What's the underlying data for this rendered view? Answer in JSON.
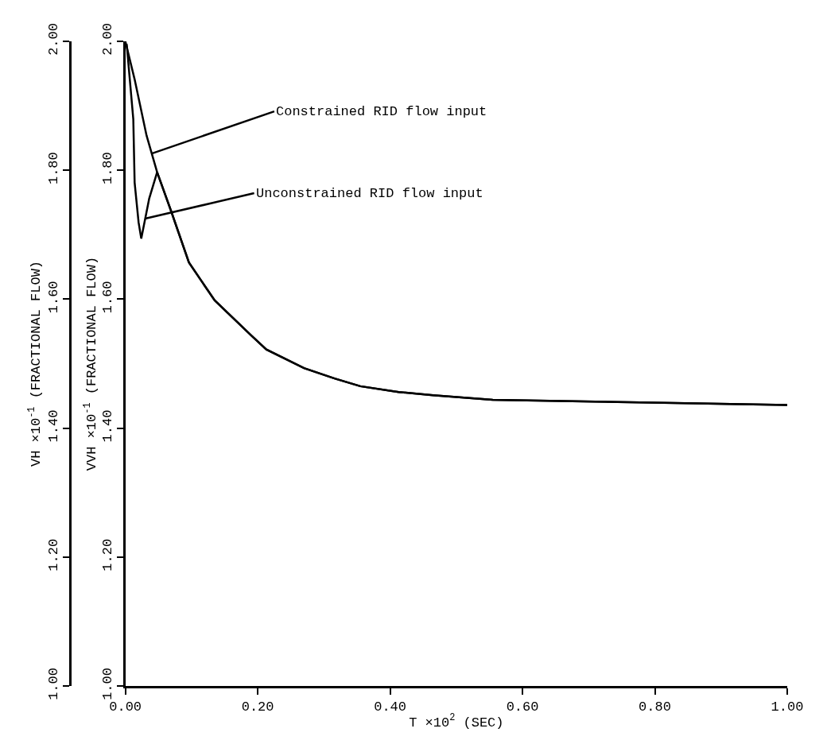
{
  "chart_data": {
    "type": "line",
    "xlabel": "T ×10$^{2}$ (SEC)",
    "ylabel": "VH ×10$^{-1}$ (FRACTIONAL FLOW)",
    "y2label": "VVH ×10$^{-1}$ (FRACTIONAL FLOW)",
    "series": [
      {
        "color": "#000000",
        "x": [
          0.0,
          0.014,
          0.032,
          0.048,
          0.069,
          0.096,
          0.135,
          0.19,
          0.213,
          0.27,
          0.316,
          0.355,
          0.413,
          0.465,
          0.555,
          0.71,
          1.0
        ],
        "values": [
          2.0,
          1.941,
          1.854,
          1.797,
          1.737,
          1.657,
          1.598,
          1.544,
          1.522,
          1.493,
          1.477,
          1.465,
          1.456,
          1.451,
          1.444,
          1.441,
          1.436
        ]
      },
      {
        "color": "#000000",
        "x": [
          0.002,
          0.012,
          0.014,
          0.02,
          0.024,
          0.036,
          0.048,
          0.069,
          0.096,
          0.135,
          0.19,
          0.213,
          0.27,
          0.316,
          0.355,
          0.413,
          0.465,
          0.555,
          0.71,
          1.0
        ],
        "values": [
          1.996,
          1.879,
          1.781,
          1.719,
          1.694,
          1.756,
          1.797,
          1.737,
          1.657,
          1.598,
          1.544,
          1.522,
          1.493,
          1.477,
          1.465,
          1.456,
          1.451,
          1.444,
          1.441,
          1.436
        ]
      }
    ],
    "annotations": [
      {
        "text": "Constrained RID flow input",
        "x": 0.04,
        "y": 1.826
      },
      {
        "text": "Unconstrained RID flow input",
        "x": 0.03,
        "y": 1.725
      }
    ],
    "xlim": [
      0,
      1
    ],
    "xticks": [
      {
        "value": 0,
        "label": "0.00"
      },
      {
        "value": 0.2,
        "label": "0.20"
      },
      {
        "value": 0.4,
        "label": "0.40"
      },
      {
        "value": 0.6,
        "label": "0.60"
      },
      {
        "value": 0.8,
        "label": "0.80"
      },
      {
        "value": 1,
        "label": "1.00"
      }
    ],
    "ylim": [
      1,
      2
    ],
    "yticks": [
      {
        "value": 1,
        "label": "1.00"
      },
      {
        "value": 1.2,
        "label": "1.20"
      },
      {
        "value": 1.4,
        "label": "1.40"
      },
      {
        "value": 1.6,
        "label": "1.60"
      },
      {
        "value": 1.8,
        "label": "1.80"
      },
      {
        "value": 2,
        "label": "2.00"
      }
    ],
    "y2lim": [
      1,
      2
    ],
    "y2ticks": [
      {
        "value": 1,
        "label": "1.00"
      },
      {
        "value": 1.2,
        "label": "1.20"
      },
      {
        "value": 1.4,
        "label": "1.40"
      },
      {
        "value": 1.6,
        "label": "1.60"
      },
      {
        "value": 1.8,
        "label": "1.80"
      },
      {
        "value": 2,
        "label": "2.00"
      }
    ],
    "grid": false,
    "marker": "none",
    "line_style": "solid"
  }
}
